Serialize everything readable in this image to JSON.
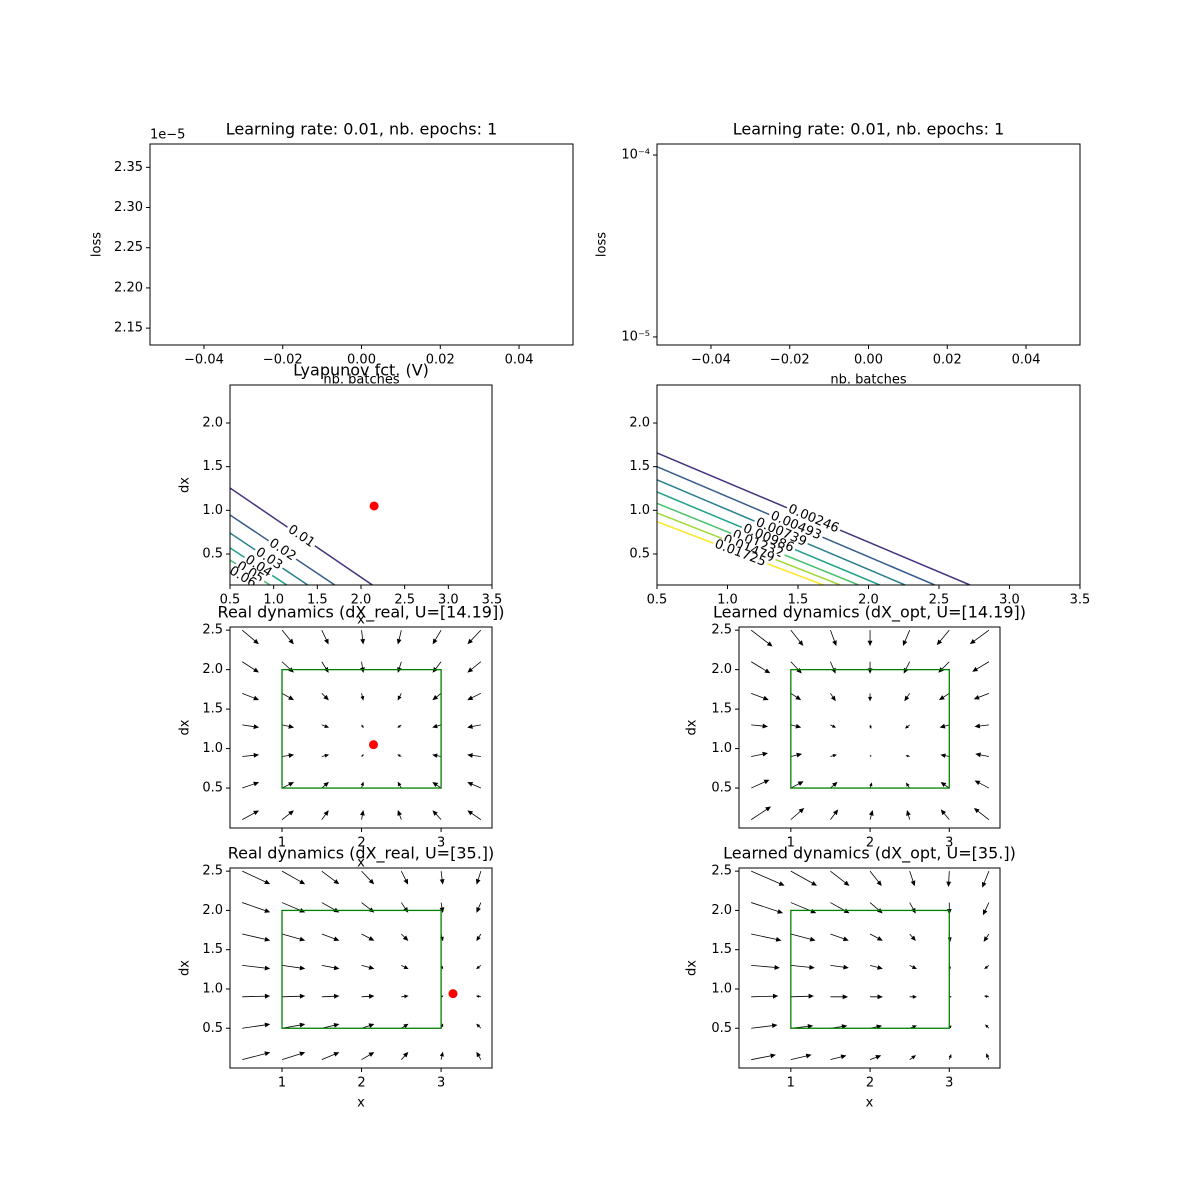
{
  "chart_data": [
    {
      "type": "line",
      "title": "Learning rate: 0.01, nb. epochs: 1",
      "xlabel": "nb. batches",
      "ylabel": "loss",
      "y_offset_label": "1e−5",
      "xlim": [
        -0.0537,
        0.0537
      ],
      "xticks": [
        {
          "value": -0.04,
          "label": "−0.04"
        },
        {
          "value": -0.02,
          "label": "−0.02"
        },
        {
          "value": 0,
          "label": "0.00"
        },
        0.02,
        0.04
      ],
      "ylim": [
        2.129e-05,
        2.379e-05
      ],
      "yticks": [
        {
          "value": 2.15e-05,
          "label": "2.15"
        },
        {
          "value": 2.2e-05,
          "label": "2.20"
        },
        {
          "value": 2.25e-05,
          "label": "2.25"
        },
        {
          "value": 2.3e-05,
          "label": "2.30"
        },
        {
          "value": 2.35e-05,
          "label": "2.35"
        }
      ]
    },
    {
      "type": "line",
      "title": "Learning rate: 0.01, nb. epochs: 1",
      "xlabel": "nb. batches",
      "ylabel": "loss",
      "yscale": "log",
      "xlim": [
        -0.0537,
        0.0537
      ],
      "xticks": [
        {
          "value": -0.04,
          "label": "−0.04"
        },
        {
          "value": -0.02,
          "label": "−0.02"
        },
        {
          "value": 0,
          "label": "0.00"
        },
        0.02,
        0.04
      ],
      "ylim": [
        9.03e-06,
        0.000115
      ],
      "yticks": [
        {
          "value": 1e-05,
          "label": "10⁻⁵"
        },
        {
          "value": 0.0001,
          "label": "10⁻⁴"
        }
      ]
    },
    {
      "type": "contour",
      "title": "Lyapunov fct. (V)",
      "xlabel": "x",
      "ylabel": "dx",
      "xlim": [
        0.5,
        3.5
      ],
      "xticks": [
        0.5,
        {
          "value": 1,
          "label": "1.0"
        },
        1.5,
        {
          "value": 2,
          "label": "2.0"
        },
        2.5,
        {
          "value": 3,
          "label": "3.0"
        },
        3.5
      ],
      "ylim": [
        0.145,
        2.435
      ],
      "yticks": [
        0.5,
        {
          "value": 1,
          "label": "1.0"
        },
        1.5,
        {
          "value": 2,
          "label": "2.0"
        }
      ],
      "series": [
        {
          "level": 0.01,
          "color": "#46327e",
          "x": [
            0.5,
            2.13
          ],
          "y": [
            1.256,
            0.145
          ]
        },
        {
          "level": 0.02,
          "color": "#365c8d",
          "x": [
            0.5,
            1.7
          ],
          "y": [
            0.947,
            0.145
          ]
        },
        {
          "level": 0.03,
          "color": "#277f8e",
          "x": [
            0.5,
            1.39
          ],
          "y": [
            0.74,
            0.145
          ]
        },
        {
          "level": 0.04,
          "color": "#1fa187",
          "x": [
            0.5,
            1.15
          ],
          "y": [
            0.57,
            0.145
          ]
        },
        {
          "level": 0.05,
          "color": "#4ac16d",
          "x": [
            0.5,
            0.96
          ],
          "y": [
            0.43,
            0.145
          ]
        },
        {
          "level": 0.06,
          "color": "#a0da39",
          "x": [
            0.5,
            0.79
          ],
          "y": [
            0.32,
            0.145
          ]
        }
      ],
      "points": {
        "x": [
          2.15
        ],
        "y": [
          1.05
        ],
        "color": "red"
      }
    },
    {
      "type": "contour",
      "xlim": [
        0.5,
        3.5
      ],
      "xticks": [
        0.5,
        {
          "value": 1,
          "label": "1.0"
        },
        1.5,
        {
          "value": 2,
          "label": "2.0"
        },
        2.5,
        {
          "value": 3,
          "label": "3.0"
        },
        3.5
      ],
      "ylim": [
        0.145,
        2.435
      ],
      "yticks": [
        0.5,
        {
          "value": 1,
          "label": "1.0"
        },
        1.5,
        {
          "value": 2,
          "label": "2.0"
        }
      ],
      "series": [
        {
          "level": 0.00246,
          "color": "#46327e",
          "x": [
            0.5,
            2.72
          ],
          "y": [
            1.657,
            0.145
          ]
        },
        {
          "level": 0.00493,
          "color": "#365c8d",
          "x": [
            0.5,
            2.47
          ],
          "y": [
            1.5,
            0.145
          ]
        },
        {
          "level": 0.00739,
          "color": "#277f8e",
          "x": [
            0.5,
            2.26
          ],
          "y": [
            1.35,
            0.145
          ]
        },
        {
          "level": 0.00986,
          "color": "#1fa187",
          "x": [
            0.5,
            2.08
          ],
          "y": [
            1.21,
            0.145
          ]
        },
        {
          "level": 0.01232,
          "color": "#4ac16d",
          "x": [
            0.5,
            1.93
          ],
          "y": [
            1.08,
            0.145
          ]
        },
        {
          "level": 0.01479,
          "color": "#a0da39",
          "x": [
            0.5,
            1.8
          ],
          "y": [
            0.97,
            0.145
          ]
        },
        {
          "level": 0.01725,
          "color": "#fde725",
          "x": [
            0.5,
            1.68
          ],
          "y": [
            0.87,
            0.145
          ]
        }
      ]
    },
    {
      "type": "quiver",
      "title": "Real dynamics (dX_real, U=[14.19])",
      "xlabel": "x",
      "ylabel": "dx",
      "xlim": [
        0.346,
        3.64
      ],
      "xticks": [
        1,
        2,
        3
      ],
      "ylim": [
        -0.006,
        2.54
      ],
      "yticks": [
        0.5,
        {
          "value": 1,
          "label": "1.0"
        },
        1.5,
        {
          "value": 2,
          "label": "2.0"
        },
        2.5
      ],
      "x": [
        0.5,
        1,
        1.5,
        2,
        2.5,
        3,
        3.5
      ],
      "y": [
        0.1,
        0.5,
        0.9,
        1.3,
        1.7,
        2.1,
        2.5
      ],
      "u": [
        [
          0.2,
          0.14,
          0.08,
          0.02,
          -0.04,
          -0.1,
          -0.16
        ],
        [
          0.2,
          0.14,
          0.08,
          0.02,
          -0.04,
          -0.1,
          -0.16
        ],
        [
          0.2,
          0.14,
          0.08,
          0.02,
          -0.04,
          -0.1,
          -0.16
        ],
        [
          0.2,
          0.14,
          0.08,
          0.02,
          -0.04,
          -0.1,
          -0.16
        ],
        [
          0.2,
          0.14,
          0.08,
          0.02,
          -0.04,
          -0.1,
          -0.16
        ],
        [
          0.2,
          0.14,
          0.08,
          0.02,
          -0.04,
          -0.1,
          -0.16
        ],
        [
          0.2,
          0.14,
          0.08,
          0.02,
          -0.04,
          -0.1,
          -0.16
        ]
      ],
      "v": [
        [
          0.11,
          0.11,
          0.11,
          0.11,
          0.11,
          0.11,
          0.11
        ],
        [
          0.07,
          0.07,
          0.07,
          0.07,
          0.07,
          0.07,
          0.07
        ],
        [
          0.02,
          0.02,
          0.02,
          0.02,
          0.02,
          0.02,
          0.02
        ],
        [
          -0.03,
          -0.03,
          -0.03,
          -0.03,
          -0.03,
          -0.03,
          -0.03
        ],
        [
          -0.08,
          -0.08,
          -0.08,
          -0.08,
          -0.08,
          -0.08,
          -0.08
        ],
        [
          -0.13,
          -0.13,
          -0.13,
          -0.13,
          -0.13,
          -0.13,
          -0.13
        ],
        [
          -0.17,
          -0.17,
          -0.17,
          -0.17,
          -0.17,
          -0.17,
          -0.17
        ]
      ],
      "box": {
        "x": [
          1,
          3
        ],
        "y": [
          0.5,
          2
        ],
        "color": "green"
      },
      "points": {
        "x": [
          2.15
        ],
        "y": [
          1.05
        ],
        "color": "red"
      }
    },
    {
      "type": "quiver",
      "title": "Learned dynamics (dX_opt, U=[14.19])",
      "ylabel": "dx",
      "xlim": [
        0.346,
        3.64
      ],
      "xticks": [
        1,
        2,
        3
      ],
      "ylim": [
        -0.006,
        2.54
      ],
      "yticks": [
        0.5,
        {
          "value": 1,
          "label": "1.0"
        },
        1.5,
        {
          "value": 2,
          "label": "2.0"
        },
        2.5
      ],
      "x": [
        0.5,
        1,
        1.5,
        2,
        2.5,
        3,
        3.5
      ],
      "y": [
        0.1,
        0.5,
        0.9,
        1.3,
        1.7,
        2.1,
        2.5
      ],
      "u": [
        [
          0.24,
          0.16,
          0.09,
          0.03,
          -0.03,
          -0.1,
          -0.18
        ],
        [
          0.22,
          0.15,
          0.08,
          0.02,
          -0.04,
          -0.1,
          -0.17
        ],
        [
          0.2,
          0.13,
          0.07,
          0.01,
          -0.04,
          -0.1,
          -0.16
        ],
        [
          0.2,
          0.12,
          0.06,
          0.01,
          -0.05,
          -0.11,
          -0.17
        ],
        [
          0.21,
          0.12,
          0.06,
          0,
          -0.06,
          -0.12,
          -0.18
        ],
        [
          0.23,
          0.13,
          0.06,
          0,
          -0.07,
          -0.13,
          -0.2
        ],
        [
          0.26,
          0.15,
          0.07,
          0,
          -0.08,
          -0.15,
          -0.23
        ]
      ],
      "v": [
        [
          0.16,
          0.14,
          0.12,
          0.11,
          0.11,
          0.12,
          0.14
        ],
        [
          0.1,
          0.08,
          0.07,
          0.06,
          0.06,
          0.07,
          0.09
        ],
        [
          0.04,
          0.03,
          0.02,
          0.01,
          0.01,
          0.02,
          0.03
        ],
        [
          -0.02,
          -0.03,
          -0.03,
          -0.04,
          -0.04,
          -0.03,
          -0.02
        ],
        [
          -0.08,
          -0.08,
          -0.09,
          -0.09,
          -0.09,
          -0.08,
          -0.07
        ],
        [
          -0.14,
          -0.14,
          -0.14,
          -0.14,
          -0.14,
          -0.13,
          -0.12
        ],
        [
          -0.2,
          -0.19,
          -0.19,
          -0.19,
          -0.19,
          -0.18,
          -0.17
        ]
      ],
      "box": {
        "x": [
          1,
          3
        ],
        "y": [
          0.5,
          2
        ],
        "color": "green"
      }
    },
    {
      "type": "quiver",
      "title": "Real dynamics (dX_real, U=[35.])",
      "xlabel": "x",
      "ylabel": "dx",
      "xlim": [
        0.346,
        3.64
      ],
      "xticks": [
        1,
        2,
        3
      ],
      "ylim": [
        -0.006,
        2.54
      ],
      "yticks": [
        0.5,
        {
          "value": 1,
          "label": "1.0"
        },
        1.5,
        {
          "value": 2,
          "label": "2.0"
        },
        2.5
      ],
      "x": [
        0.5,
        1,
        1.5,
        2,
        2.5,
        3,
        3.5
      ],
      "y": [
        0.1,
        0.5,
        0.9,
        1.3,
        1.7,
        2.1,
        2.5
      ],
      "u": [
        [
          0.34,
          0.28,
          0.21,
          0.15,
          0.08,
          0.02,
          -0.05
        ],
        [
          0.34,
          0.28,
          0.21,
          0.15,
          0.08,
          0.02,
          -0.05
        ],
        [
          0.34,
          0.28,
          0.21,
          0.15,
          0.08,
          0.02,
          -0.05
        ],
        [
          0.34,
          0.28,
          0.21,
          0.15,
          0.08,
          0.02,
          -0.05
        ],
        [
          0.34,
          0.28,
          0.21,
          0.15,
          0.08,
          0.02,
          -0.05
        ],
        [
          0.34,
          0.28,
          0.21,
          0.15,
          0.08,
          0.02,
          -0.05
        ],
        [
          0.34,
          0.28,
          0.21,
          0.15,
          0.08,
          0.02,
          -0.05
        ]
      ],
      "v": [
        [
          0.09,
          0.09,
          0.09,
          0.09,
          0.09,
          0.09,
          0.09
        ],
        [
          0.05,
          0.05,
          0.05,
          0.05,
          0.05,
          0.05,
          0.05
        ],
        [
          0.01,
          0.01,
          0.01,
          0.01,
          0.01,
          0.01,
          0.01
        ],
        [
          -0.04,
          -0.04,
          -0.04,
          -0.04,
          -0.04,
          -0.04,
          -0.04
        ],
        [
          -0.08,
          -0.08,
          -0.08,
          -0.08,
          -0.08,
          -0.08,
          -0.08
        ],
        [
          -0.12,
          -0.12,
          -0.12,
          -0.12,
          -0.12,
          -0.12,
          -0.12
        ],
        [
          -0.16,
          -0.16,
          -0.16,
          -0.16,
          -0.16,
          -0.16,
          -0.16
        ]
      ],
      "box": {
        "x": [
          1,
          3
        ],
        "y": [
          0.5,
          2
        ],
        "color": "green"
      },
      "points": {
        "x": [
          3.15
        ],
        "y": [
          0.94
        ],
        "color": "red"
      }
    },
    {
      "type": "quiver",
      "title": "Learned dynamics (dX_opt, U=[35.])",
      "xlabel": "x",
      "ylabel": "dx",
      "xlim": [
        0.346,
        3.64
      ],
      "xticks": [
        1,
        2,
        3
      ],
      "ylim": [
        -0.006,
        2.54
      ],
      "yticks": [
        0.5,
        {
          "value": 1,
          "label": "1.0"
        },
        1.5,
        {
          "value": 2,
          "label": "2.0"
        },
        2.5
      ],
      "x": [
        0.5,
        1,
        1.5,
        2,
        2.5,
        3,
        3.5
      ],
      "y": [
        0.1,
        0.5,
        0.9,
        1.3,
        1.7,
        2.1,
        2.5
      ],
      "u": [
        [
          0.3,
          0.25,
          0.19,
          0.13,
          0.07,
          0.02,
          -0.03
        ],
        [
          0.32,
          0.27,
          0.2,
          0.14,
          0.08,
          0.02,
          -0.04
        ],
        [
          0.33,
          0.28,
          0.21,
          0.15,
          0.08,
          0.02,
          -0.05
        ],
        [
          0.35,
          0.29,
          0.22,
          0.15,
          0.08,
          0.01,
          -0.05
        ],
        [
          0.37,
          0.3,
          0.22,
          0.15,
          0.07,
          0.01,
          -0.06
        ],
        [
          0.39,
          0.31,
          0.23,
          0.15,
          0.07,
          0,
          -0.07
        ],
        [
          0.41,
          0.32,
          0.23,
          0.14,
          0.06,
          -0.01,
          -0.08
        ]
      ],
      "v": [
        [
          0.06,
          0.06,
          0.05,
          0.05,
          0.05,
          0.06,
          0.07
        ],
        [
          0.04,
          0.03,
          0.03,
          0.03,
          0.03,
          0.03,
          0.04
        ],
        [
          0.01,
          0.01,
          0,
          0,
          0,
          0,
          0.01
        ],
        [
          -0.03,
          -0.03,
          -0.03,
          -0.04,
          -0.04,
          -0.04,
          -0.04
        ],
        [
          -0.08,
          -0.08,
          -0.08,
          -0.08,
          -0.08,
          -0.09,
          -0.09
        ],
        [
          -0.13,
          -0.13,
          -0.13,
          -0.13,
          -0.13,
          -0.14,
          -0.15
        ],
        [
          -0.18,
          -0.18,
          -0.18,
          -0.18,
          -0.18,
          -0.19,
          -0.2
        ]
      ],
      "box": {
        "x": [
          1,
          3
        ],
        "y": [
          0.5,
          2
        ],
        "color": "green"
      }
    }
  ]
}
